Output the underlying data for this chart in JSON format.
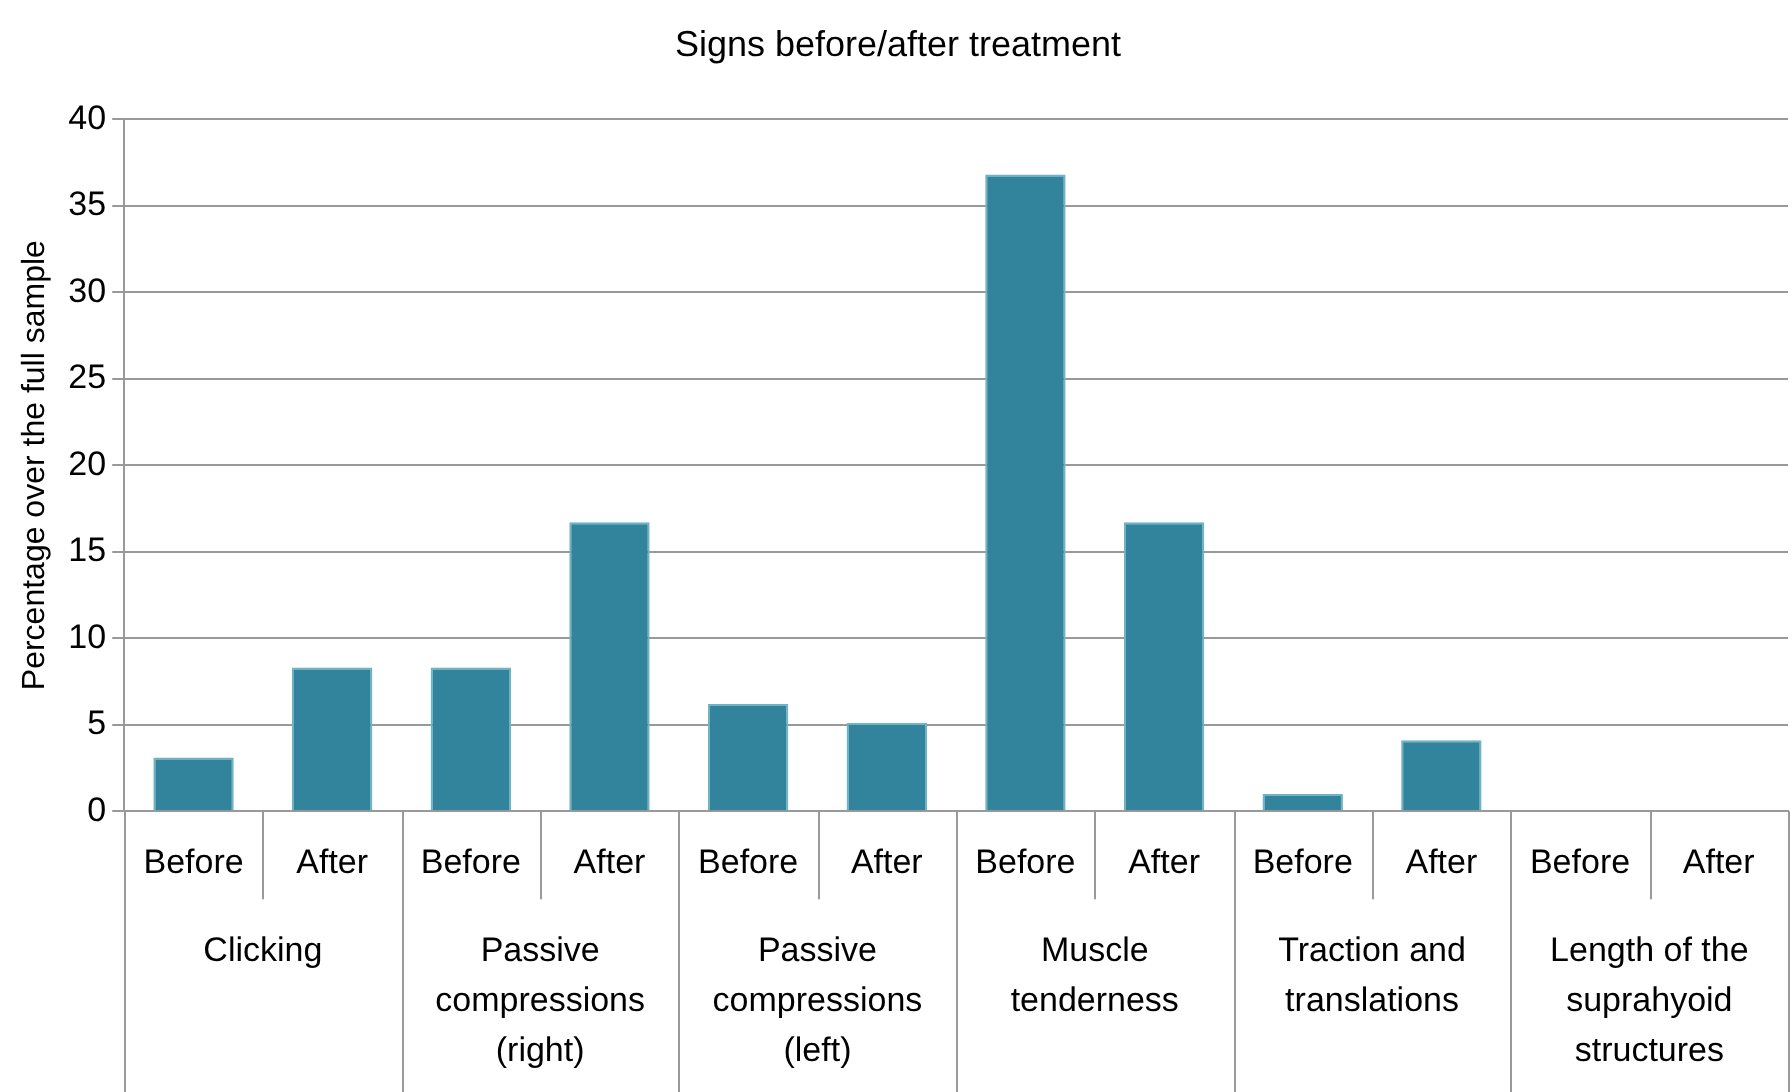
{
  "chart_data": {
    "type": "bar",
    "title": "Signs before/after treatment",
    "ylabel": "Percentage over the full sample",
    "categories": [
      "Before",
      "After",
      "Before",
      "After",
      "Before",
      "After",
      "Before",
      "After",
      "Before",
      "After",
      "Before",
      "After"
    ],
    "values": [
      3.1,
      8.3,
      8.3,
      16.7,
      6.2,
      5.1,
      36.8,
      16.7,
      1.0,
      4.1,
      0,
      0
    ],
    "color": "#31849b",
    "ylim": [
      0,
      40
    ],
    "yticks": [
      0,
      5,
      10,
      15,
      20,
      25,
      30,
      35,
      40
    ],
    "grid": "y",
    "legend": false,
    "annotations": [
      "Clicking",
      "Passive compressions (right)",
      "Passive compressions (left)",
      "Muscle tenderness",
      "Traction and translations",
      "Length of the suprahyoid structures"
    ]
  }
}
